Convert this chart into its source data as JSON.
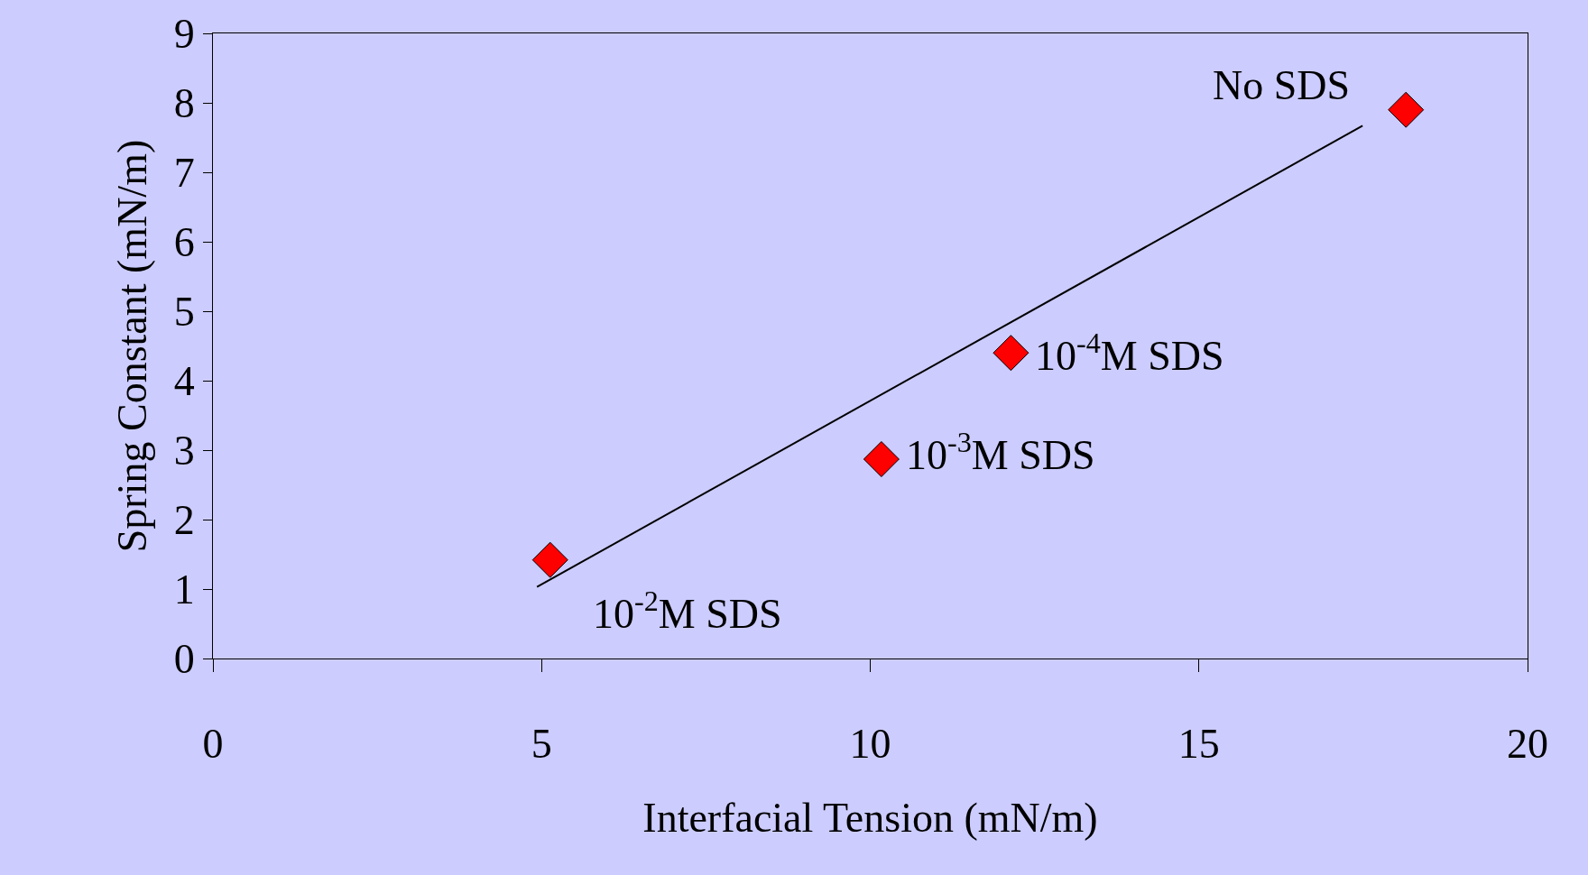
{
  "chart_data": {
    "type": "scatter",
    "xlabel": "Interfacial Tension (mN/m)",
    "ylabel": "Spring Constant (mN/m)",
    "xlim": [
      0,
      20
    ],
    "xticks": [
      0,
      5,
      10,
      15,
      20
    ],
    "ylim": [
      0,
      9
    ],
    "yticks": [
      0,
      1,
      2,
      3,
      4,
      5,
      6,
      7,
      8,
      9
    ],
    "grid": false,
    "legend": false,
    "series": [
      {
        "marker": "diamond",
        "color": "#ff0000",
        "x": [
          5.13,
          10.17,
          12.14,
          18.15
        ],
        "values": [
          1.42,
          2.87,
          4.4,
          7.9
        ]
      },
      {
        "type": "line",
        "marker": "none",
        "color": "#000000",
        "x": [
          4.93,
          17.49
        ],
        "values": [
          1.03,
          7.67
        ]
      }
    ],
    "annotations": [
      {
        "text": "10$^{-2}$M SDS",
        "x": 5.13,
        "y": 1.42
      },
      {
        "text": "10$^{-3}$M SDS",
        "x": 10.17,
        "y": 2.87
      },
      {
        "text": "10$^{-4}$M SDS",
        "x": 12.14,
        "y": 4.4
      },
      {
        "text": "No SDS",
        "x": 18.15,
        "y": 7.9
      }
    ]
  }
}
